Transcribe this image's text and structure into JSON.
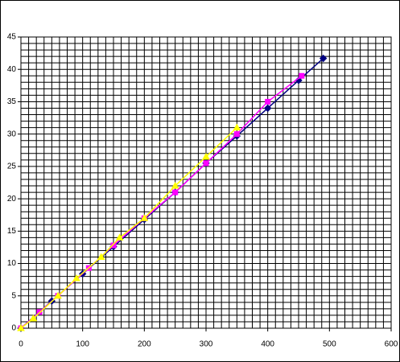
{
  "chart_data": {
    "type": "scatter",
    "xlim": [
      0,
      600
    ],
    "xticks": [
      0,
      100,
      200,
      300,
      400,
      500,
      600
    ],
    "ylim": [
      0,
      45
    ],
    "yticks": [
      0,
      5,
      10,
      15,
      20,
      25,
      30,
      35,
      40,
      45
    ],
    "grid": true,
    "xgrid_step": 12.5,
    "ygrid_step": 1,
    "series": [
      {
        "color": "#000080",
        "marker": "diamond",
        "x": [
          0,
          50,
          100,
          150,
          200,
          250,
          300,
          350,
          400,
          450,
          490
        ],
        "values": [
          0,
          4.2,
          8.4,
          12.6,
          16.8,
          21,
          25.5,
          29.7,
          34,
          38.3,
          41.7
        ]
      },
      {
        "color": "#ff00ff",
        "marker": "square",
        "x": [
          0,
          30,
          60,
          110,
          150,
          200,
          250,
          300,
          350,
          400,
          455
        ],
        "values": [
          0,
          2.5,
          5,
          9.3,
          12.8,
          17,
          21,
          25.5,
          30,
          35,
          39
        ]
      },
      {
        "color": "#ffff00",
        "marker": "triangle",
        "x": [
          0,
          20,
          60,
          90,
          130,
          160,
          200,
          250,
          300,
          350
        ],
        "values": [
          0,
          1.5,
          5,
          7.7,
          11,
          14,
          17,
          22,
          26.5,
          31
        ]
      }
    ]
  }
}
